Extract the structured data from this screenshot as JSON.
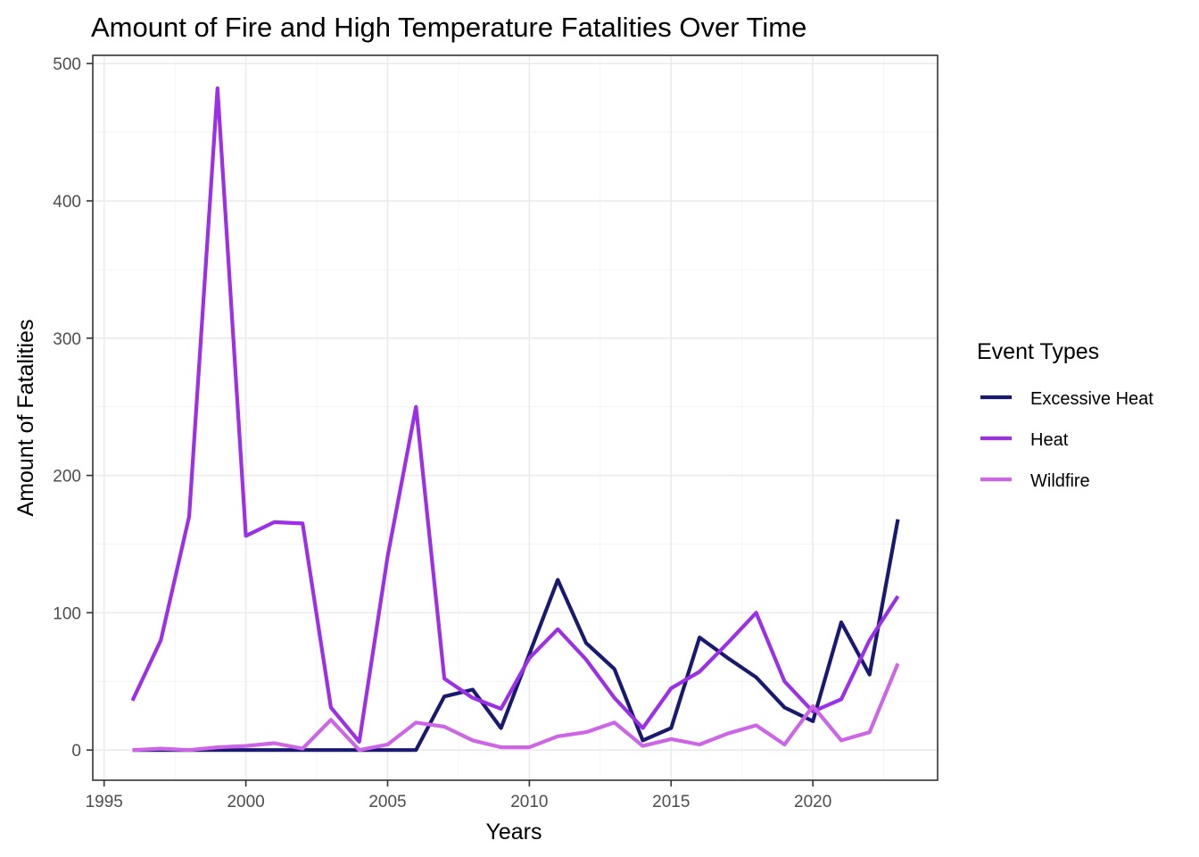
{
  "chart_data": {
    "type": "line",
    "title": "Amount of Fire and High Temperature Fatalities Over Time",
    "xlabel": "Years",
    "ylabel": "Amount of Fatalities",
    "xlim": [
      1994.6,
      2024.4
    ],
    "ylim": [
      -22,
      506
    ],
    "x_ticks": [
      1995,
      2000,
      2005,
      2010,
      2015,
      2020
    ],
    "y_ticks": [
      0,
      100,
      200,
      300,
      400,
      500
    ],
    "grid": true,
    "legend": {
      "title": "Event Types",
      "position": "right"
    },
    "x": [
      1996,
      1997,
      1998,
      1999,
      2000,
      2001,
      2002,
      2003,
      2004,
      2005,
      2006,
      2007,
      2008,
      2009,
      2010,
      2011,
      2012,
      2013,
      2014,
      2015,
      2016,
      2017,
      2018,
      2019,
      2020,
      2021,
      2022,
      2023
    ],
    "series": [
      {
        "name": "Excessive Heat",
        "color": "#191970",
        "values": [
          0,
          0,
          0,
          0,
          0,
          0,
          0,
          0,
          0,
          0,
          0,
          39,
          44,
          16,
          70,
          124,
          78,
          59,
          7,
          16,
          82,
          67,
          53,
          31,
          21,
          93,
          55,
          168
        ]
      },
      {
        "name": "Heat",
        "color": "#9b30e6",
        "values": [
          36,
          80,
          170,
          482,
          156,
          166,
          165,
          31,
          6,
          141,
          250,
          52,
          38,
          30,
          67,
          88,
          66,
          38,
          16,
          45,
          57,
          78,
          100,
          50,
          28,
          37,
          80,
          112
        ]
      },
      {
        "name": "Wildfire",
        "color": "#cc66e6",
        "values": [
          0,
          1,
          0,
          2,
          3,
          5,
          1,
          22,
          0,
          4,
          20,
          17,
          7,
          2,
          2,
          10,
          13,
          20,
          3,
          8,
          4,
          12,
          18,
          4,
          32,
          7,
          13,
          63
        ]
      }
    ]
  }
}
